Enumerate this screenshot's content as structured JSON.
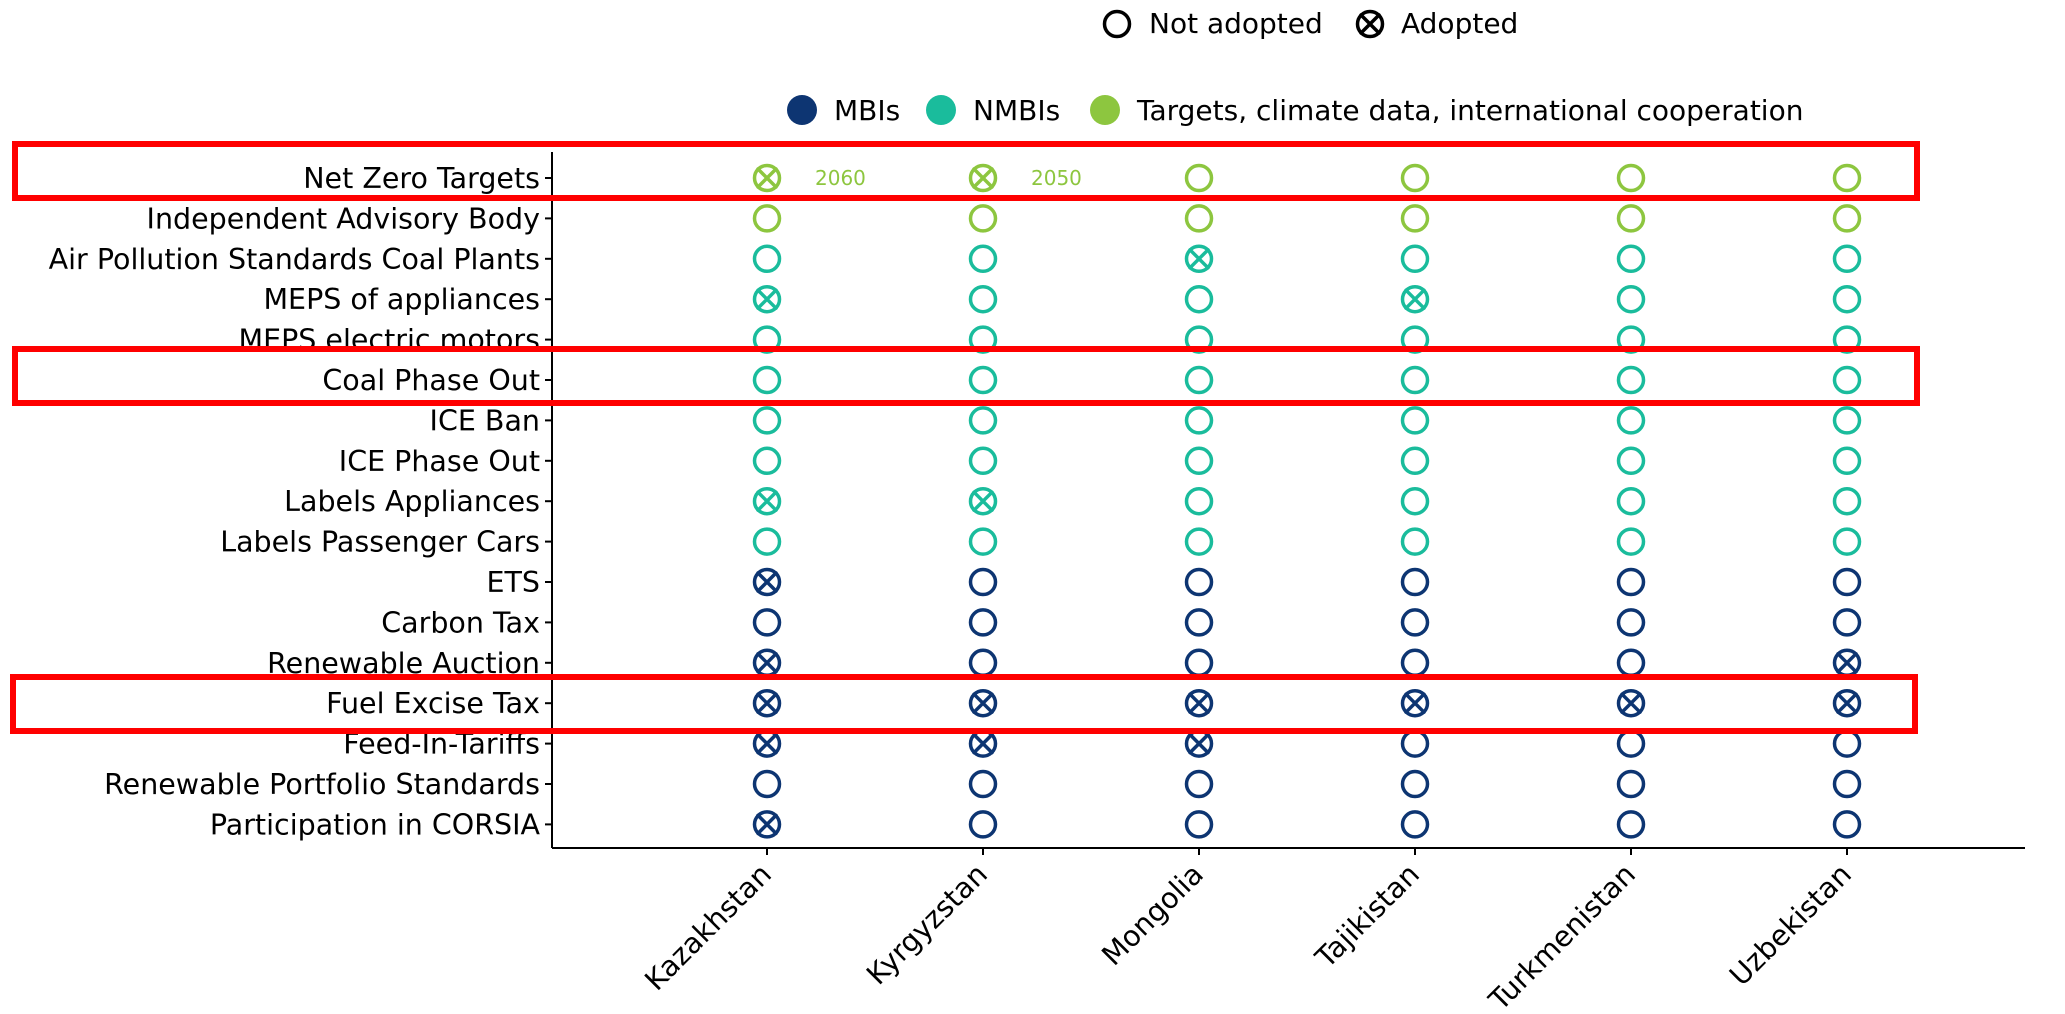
{
  "chart_data": {
    "type": "dot-matrix",
    "title": "",
    "xlabel": "",
    "ylabel": "",
    "grid": false,
    "legend_adoption": {
      "placement": "top",
      "not_adopted_label": "Not adopted",
      "adopted_label": "Adopted"
    },
    "legend_categories": {
      "placement": "top",
      "items": [
        {
          "key": "MBI",
          "label": "MBIs",
          "color": "#0d3572"
        },
        {
          "key": "NMBI",
          "label": "NMBIs",
          "color": "#1abc9c"
        },
        {
          "key": "TGT",
          "label": "Targets, climate data, international cooperation",
          "color": "#8dc63f"
        }
      ]
    },
    "highlight_color": "#ff0000",
    "highlighted_rows": [
      "Net Zero Targets",
      "Coal Phase Out",
      "Fuel Excise Tax"
    ],
    "countries": [
      "Kazakhstan",
      "Kyrgyzstan",
      "Mongolia",
      "Tajikistan",
      "Turkmenistan",
      "Uzbekistan"
    ],
    "rows": [
      {
        "label": "Net Zero Targets",
        "category": "TGT",
        "adopted": [
          1,
          1,
          0,
          0,
          0,
          0
        ],
        "notes": [
          "2060",
          "2050",
          "",
          "",
          "",
          ""
        ]
      },
      {
        "label": "Independent Advisory Body",
        "category": "TGT",
        "adopted": [
          0,
          0,
          0,
          0,
          0,
          0
        ]
      },
      {
        "label": "Air Pollution Standards Coal Plants",
        "category": "NMBI",
        "adopted": [
          0,
          0,
          1,
          0,
          0,
          0
        ]
      },
      {
        "label": "MEPS of appliances",
        "category": "NMBI",
        "adopted": [
          1,
          0,
          0,
          1,
          0,
          0
        ]
      },
      {
        "label": "MEPS electric motors",
        "category": "NMBI",
        "adopted": [
          0,
          0,
          0,
          0,
          0,
          0
        ]
      },
      {
        "label": "Coal Phase Out",
        "category": "NMBI",
        "adopted": [
          0,
          0,
          0,
          0,
          0,
          0
        ]
      },
      {
        "label": "ICE Ban",
        "category": "NMBI",
        "adopted": [
          0,
          0,
          0,
          0,
          0,
          0
        ]
      },
      {
        "label": "ICE Phase Out",
        "category": "NMBI",
        "adopted": [
          0,
          0,
          0,
          0,
          0,
          0
        ]
      },
      {
        "label": "Labels Appliances",
        "category": "NMBI",
        "adopted": [
          1,
          1,
          0,
          0,
          0,
          0
        ]
      },
      {
        "label": "Labels Passenger Cars",
        "category": "NMBI",
        "adopted": [
          0,
          0,
          0,
          0,
          0,
          0
        ]
      },
      {
        "label": "ETS",
        "category": "MBI",
        "adopted": [
          1,
          0,
          0,
          0,
          0,
          0
        ]
      },
      {
        "label": "Carbon Tax",
        "category": "MBI",
        "adopted": [
          0,
          0,
          0,
          0,
          0,
          0
        ]
      },
      {
        "label": "Renewable Auction",
        "category": "MBI",
        "adopted": [
          1,
          0,
          0,
          0,
          0,
          1
        ]
      },
      {
        "label": "Fuel Excise Tax",
        "category": "MBI",
        "adopted": [
          1,
          1,
          1,
          1,
          1,
          1
        ]
      },
      {
        "label": "Feed-In-Tariffs",
        "category": "MBI",
        "adopted": [
          1,
          1,
          1,
          0,
          0,
          0
        ]
      },
      {
        "label": "Renewable Portfolio Standards",
        "category": "MBI",
        "adopted": [
          0,
          0,
          0,
          0,
          0,
          0
        ]
      },
      {
        "label": "Participation in CORSIA",
        "category": "MBI",
        "adopted": [
          1,
          0,
          0,
          0,
          0,
          0
        ]
      }
    ]
  }
}
